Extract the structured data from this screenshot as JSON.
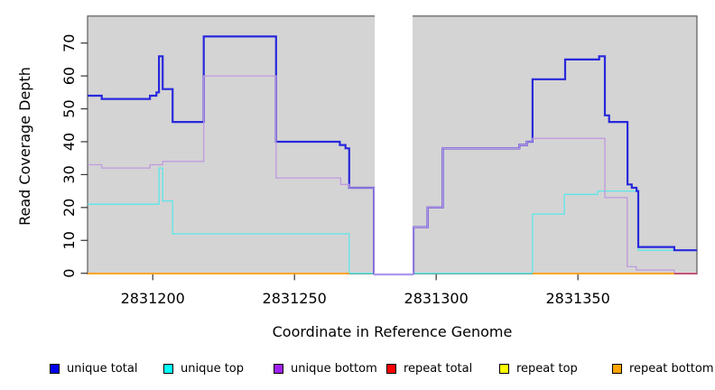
{
  "chart_data": {
    "type": "line",
    "subtype": "step-coverage",
    "title": "",
    "xlabel": "Coordinate in Reference Genome",
    "ylabel": "Read Coverage Depth",
    "xlim": [
      2831177,
      2831392
    ],
    "ylim": [
      0,
      78
    ],
    "x_ticks": [
      2831200,
      2831250,
      2831300,
      2831350
    ],
    "y_ticks": [
      0,
      10,
      20,
      30,
      40,
      50,
      60,
      70
    ],
    "grid": false,
    "panel_background": "#d4d4d4",
    "box_color": "#5a5a5a",
    "gap": {
      "x_start": 2831278,
      "x_end": 2831292,
      "fill": "#ffffff"
    },
    "legend_position": "bottom",
    "legend": [
      {
        "label": "unique total",
        "color": "#0000EE"
      },
      {
        "label": "unique top",
        "color": "#00FFFF"
      },
      {
        "label": "unique bottom",
        "color": "#A020F0"
      },
      {
        "label": "repeat total",
        "color": "#FF0000"
      },
      {
        "label": "repeat top",
        "color": "#FFFF00"
      },
      {
        "label": "repeat bottom",
        "color": "#FFA500"
      }
    ],
    "series": [
      {
        "name": "unique total",
        "line_color": "#2828DC",
        "width": 2.2,
        "end": 2831392,
        "steps": [
          [
            2831177,
            54
          ],
          [
            2831182,
            53
          ],
          [
            2831199,
            54
          ],
          [
            2831201.3,
            55
          ],
          [
            2831202.2,
            66
          ],
          [
            2831203.5,
            56
          ],
          [
            2831207,
            46
          ],
          [
            2831218,
            72
          ],
          [
            2831243.5,
            40
          ],
          [
            2831266,
            39
          ],
          [
            2831268,
            38
          ],
          [
            2831269.3,
            26
          ],
          [
            2831278,
            0
          ],
          [
            2831292,
            14
          ],
          [
            2831297,
            20
          ],
          [
            2831302.3,
            38
          ],
          [
            2831329.3,
            39
          ],
          [
            2831332,
            40
          ],
          [
            2831334,
            59
          ],
          [
            2831345.5,
            65
          ],
          [
            2831357.5,
            66
          ],
          [
            2831359.5,
            48
          ],
          [
            2831361,
            46
          ],
          [
            2831367.5,
            27
          ],
          [
            2831369,
            26
          ],
          [
            2831370.7,
            25
          ],
          [
            2831371.3,
            8
          ],
          [
            2831384,
            7
          ]
        ]
      },
      {
        "name": "unique top",
        "line_color": "#5CE6EA",
        "width": 1.3,
        "end": 2831392,
        "steps": [
          [
            2831177,
            21
          ],
          [
            2831202.2,
            32
          ],
          [
            2831203.5,
            22
          ],
          [
            2831207,
            12
          ],
          [
            2831269.3,
            0
          ],
          [
            2831334,
            18
          ],
          [
            2831345.2,
            24
          ],
          [
            2831357,
            25
          ],
          [
            2831371.3,
            7
          ]
        ]
      },
      {
        "name": "unique bottom",
        "line_color": "#C09AE0",
        "width": 1.3,
        "end": 2831384,
        "steps": [
          [
            2831177,
            33
          ],
          [
            2831182,
            32
          ],
          [
            2831199,
            33
          ],
          [
            2831203.5,
            34
          ],
          [
            2831218,
            60
          ],
          [
            2831243.5,
            29
          ],
          [
            2831266.3,
            27
          ],
          [
            2831269.3,
            26
          ],
          [
            2831278,
            0
          ],
          [
            2831292,
            14
          ],
          [
            2831297,
            20
          ],
          [
            2831302.3,
            38
          ],
          [
            2831329.3,
            39
          ],
          [
            2831332,
            40
          ],
          [
            2831334,
            41
          ],
          [
            2831359.5,
            23
          ],
          [
            2831367.4,
            2
          ],
          [
            2831370.6,
            1
          ],
          [
            2831384,
            0
          ]
        ]
      }
    ],
    "baseline_segments": [
      {
        "series": "repeat bottom",
        "color": "#FFA41C",
        "from": 2831177,
        "to": 2831269.3,
        "value": 0,
        "width": 2.0,
        "over_gap": false
      },
      {
        "series": "unique top + repeat top overlap",
        "color": "#8CD98C",
        "from": 2831269.3,
        "to": 2831278,
        "value": 0,
        "width": 1.3,
        "over_gap": false
      },
      {
        "series": "unique top + repeat top overlap",
        "color": "#8CD98C",
        "from": 2831292,
        "to": 2831334,
        "value": 0,
        "width": 1.3,
        "over_gap": false
      },
      {
        "series": "repeat bottom",
        "color": "#FFA41C",
        "from": 2831334,
        "to": 2831384,
        "value": 0,
        "width": 2.0,
        "over_gap": false
      },
      {
        "series": "repeat total + unique bottom overlap",
        "color": "#D43C6E",
        "from": 2831384,
        "to": 2831392,
        "value": 0,
        "width": 1.5,
        "over_gap": false
      },
      {
        "series": "unique total + unique bottom in gap",
        "color": "#B0A0F0",
        "from": 2831278,
        "to": 2831292,
        "value": 0,
        "width": 1.8,
        "over_gap": true
      }
    ]
  }
}
